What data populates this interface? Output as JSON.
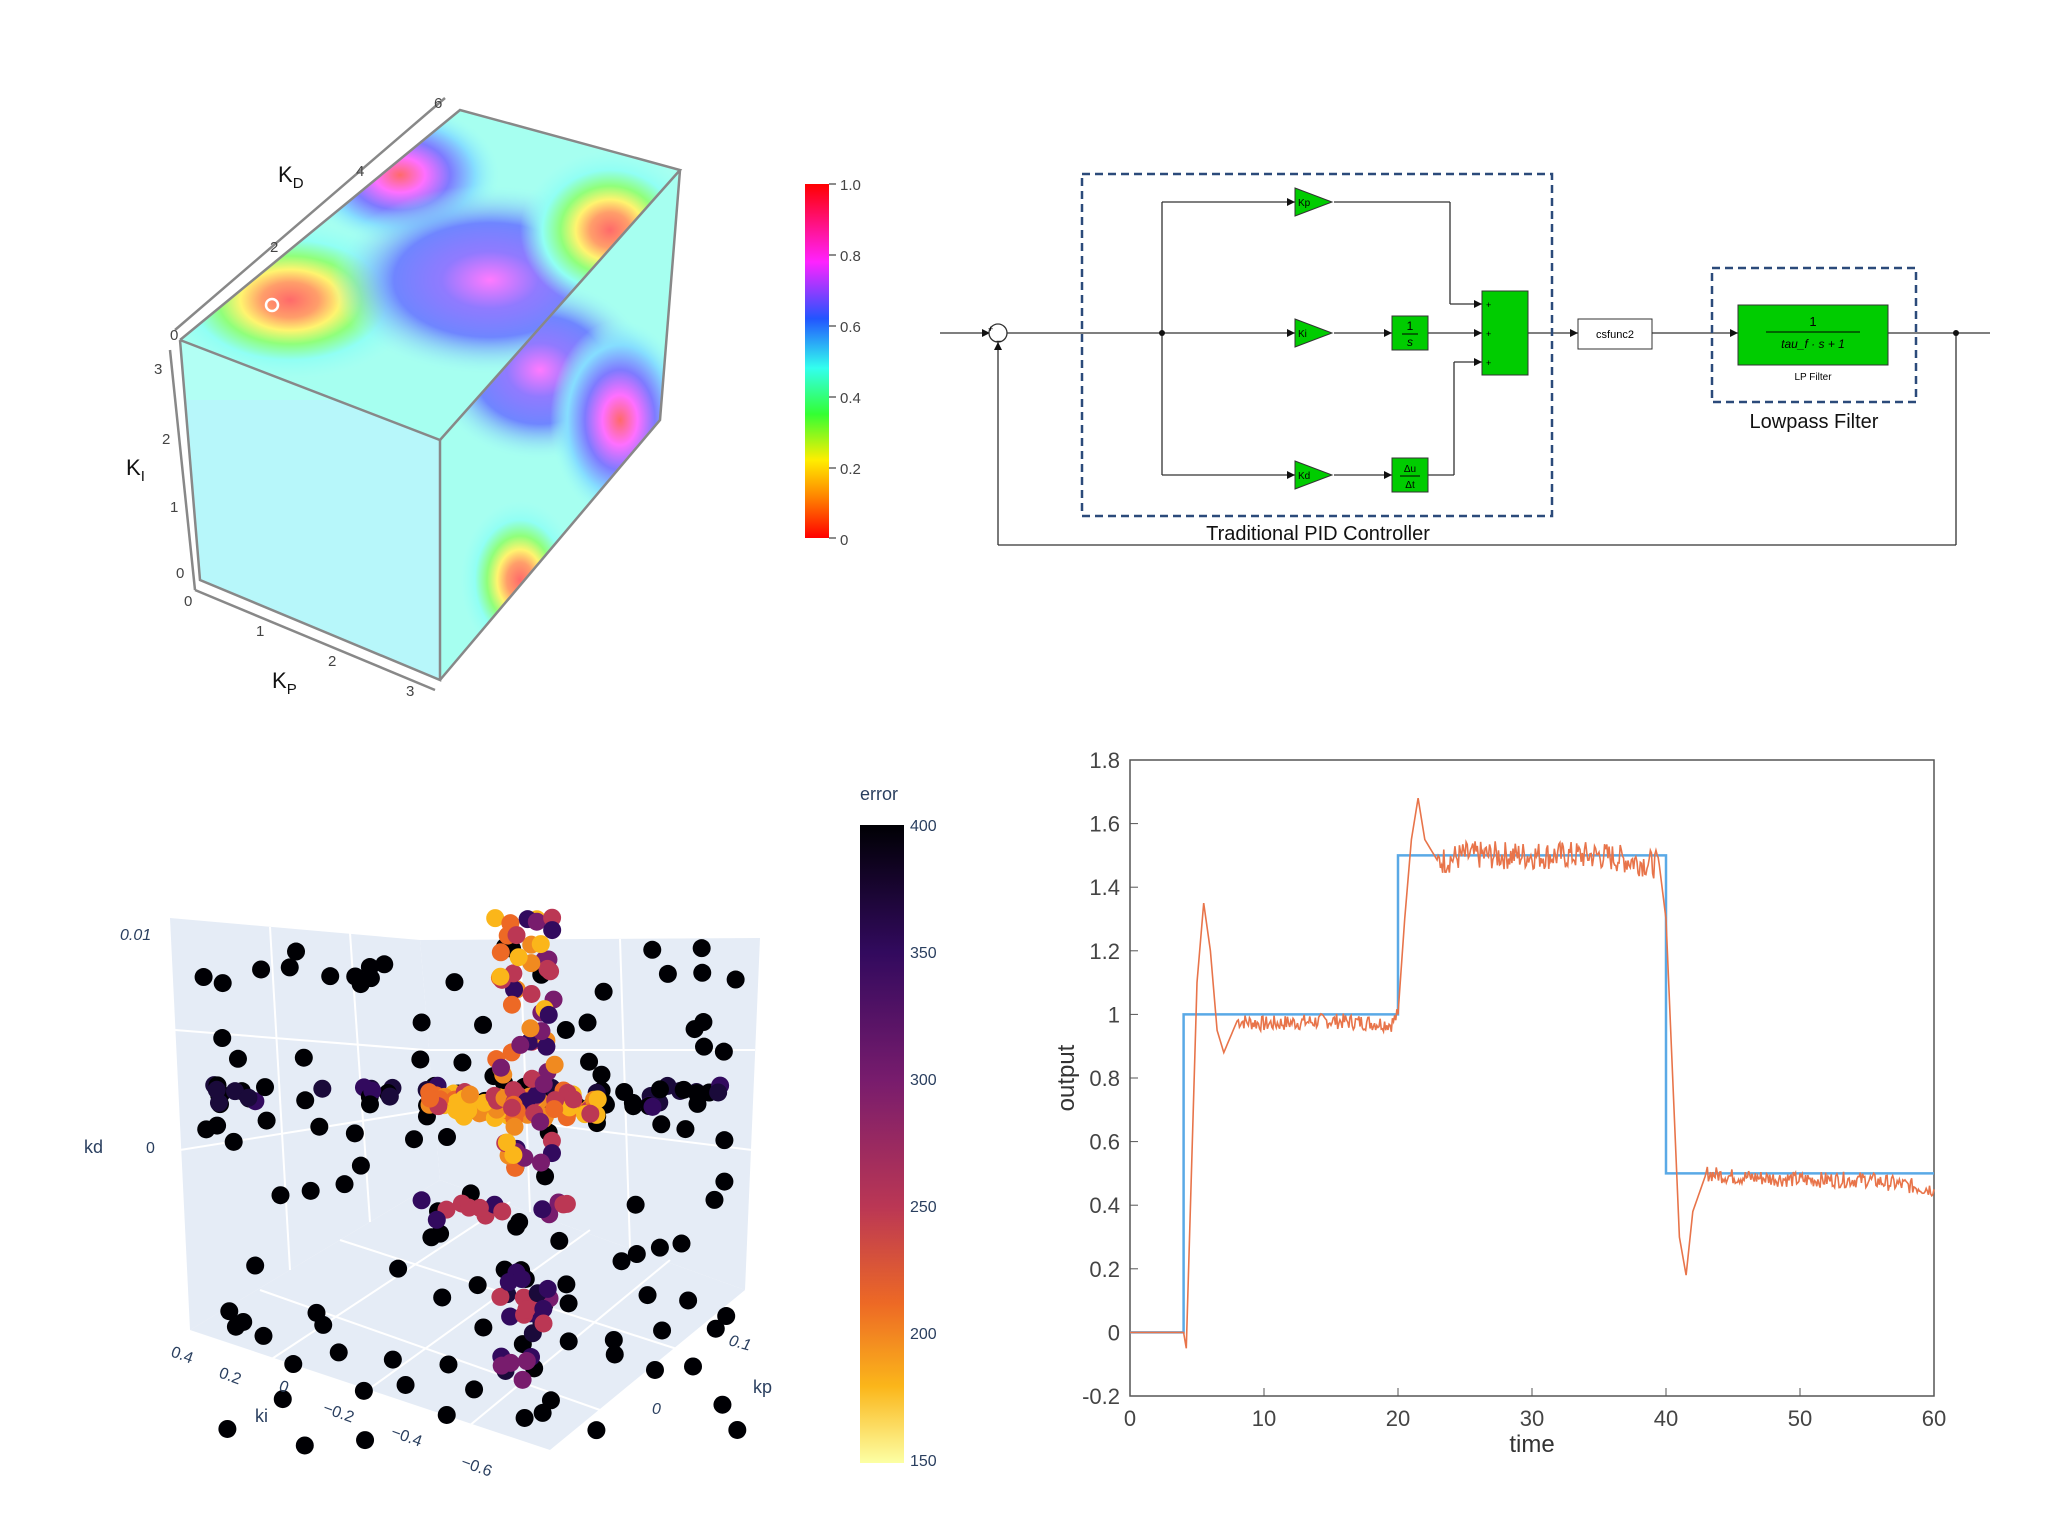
{
  "cube": {
    "axis_kd": "K",
    "axis_kd_sub": "D",
    "axis_ki": "K",
    "axis_ki_sub": "I",
    "axis_kp": "K",
    "axis_kp_sub": "P",
    "kd_ticks": [
      "0",
      "2",
      "4",
      "6"
    ],
    "ki_ticks": [
      "0",
      "1",
      "2",
      "3"
    ],
    "kp_ticks": [
      "0",
      "1",
      "2",
      "3"
    ],
    "colorbar_ticks": [
      "1.0",
      "0.8",
      "0.6",
      "0.4",
      "0.2",
      "0"
    ],
    "colors": {
      "red": "#ff1a1a",
      "magenta": "#ff22ff",
      "blue": "#1a33ff",
      "cyan": "#33ffff",
      "green": "#33ff33",
      "yellow": "#ffff33"
    }
  },
  "diagram": {
    "gain_kp": "Kp",
    "gain_ki": "Ki",
    "gain_kd": "Kd",
    "integrator_num": "1",
    "integrator_den": "s",
    "deriv_num": "Δu",
    "deriv_den": "Δt",
    "sum_signs": [
      "+",
      "+",
      "+"
    ],
    "feedback_signs": [
      "+",
      "−"
    ],
    "sfunc_label": "csfunc2",
    "lp_num": "1",
    "lp_den": "tau_f · s + 1",
    "lp_block_label": "LP Filter",
    "pid_group_label": "Traditional PID Controller",
    "lp_group_label": "Lowpass Filter",
    "block_color": "#00cc00"
  },
  "scatter3d": {
    "colorbar_title": "error",
    "colorbar_ticks": [
      "400",
      "350",
      "300",
      "250",
      "200",
      "150"
    ],
    "axis_kd": "kd",
    "axis_ki": "ki",
    "axis_kp": "kp",
    "kd_ticks": [
      "0.01",
      "0"
    ],
    "ki_ticks": [
      "0.4",
      "0.2",
      "0",
      "−0.2",
      "−0.4",
      "−0.6"
    ],
    "kp_ticks": [
      "0.1",
      "0"
    ]
  },
  "chart_data": {
    "type": "line",
    "xlabel": "time",
    "ylabel": "output",
    "xlim": [
      0,
      60
    ],
    "ylim": [
      -0.2,
      1.8
    ],
    "x_ticks": [
      "0",
      "10",
      "20",
      "30",
      "40",
      "50",
      "60"
    ],
    "y_ticks": [
      "-0.2",
      "0",
      "0.2",
      "0.4",
      "0.6",
      "0.8",
      "1",
      "1.2",
      "1.4",
      "1.6",
      "1.8"
    ],
    "series": [
      {
        "color": "#5aa9e6",
        "x": [
          0,
          4,
          4,
          20,
          20,
          40,
          40,
          60
        ],
        "y": [
          0,
          0,
          1,
          1,
          1.5,
          1.5,
          0.5,
          0.5
        ]
      },
      {
        "color": "#e8744a",
        "x": [
          0,
          4,
          4.2,
          5,
          5.5,
          6,
          6.5,
          7,
          8,
          10,
          15,
          19.5,
          20,
          20.5,
          21,
          21.5,
          22,
          23,
          25,
          30,
          35,
          39.5,
          40,
          40.5,
          41,
          41.5,
          42,
          43,
          45,
          50,
          55,
          60
        ],
        "y": [
          0,
          0,
          -0.05,
          1.1,
          1.35,
          1.2,
          0.95,
          0.88,
          0.98,
          0.97,
          0.98,
          0.97,
          1.0,
          1.3,
          1.55,
          1.68,
          1.55,
          1.48,
          1.5,
          1.5,
          1.5,
          1.47,
          1.3,
          0.8,
          0.3,
          0.18,
          0.38,
          0.5,
          0.49,
          0.48,
          0.48,
          0.45
        ]
      }
    ]
  }
}
